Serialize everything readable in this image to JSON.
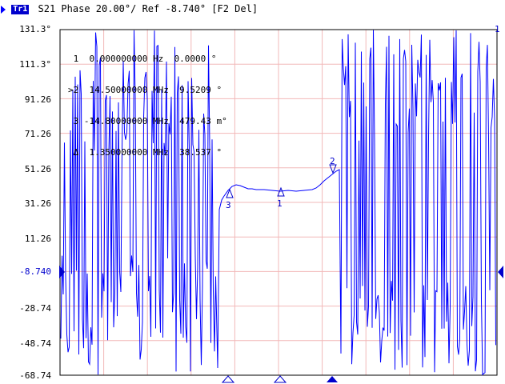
{
  "trace_header": {
    "badge": "Tr1",
    "text": "S21 Phase 20.00°/ Ref -8.740° [F2 Del]"
  },
  "y_axis": {
    "labels": [
      "131.3°",
      "111.3°",
      "91.26",
      "71.26",
      "51.26",
      "31.26",
      "11.26",
      "-8.740",
      "-28.74",
      "-48.74",
      "-68.74"
    ]
  },
  "marker_table": [
    {
      "id": "1",
      "prefix": " ",
      "freq": "0.000000000 Hz",
      "value": "0.0000 °"
    },
    {
      "id": "2",
      "prefix": ">",
      "freq": "14.50000000 MHz",
      "value": "9.5209 °"
    },
    {
      "id": "3",
      "prefix": " ",
      "freq": "-14.80000000 MHz",
      "value": "479.43 m°"
    },
    {
      "id": "Δ",
      "prefix": " ",
      "freq": "1.350000000 MHz",
      "value": "38.537 °"
    }
  ],
  "plot_markers": [
    "1",
    "2",
    "3",
    "1"
  ],
  "colors": {
    "trace": "#0000ff",
    "grid": "#f2b8b8",
    "frame": "#000000",
    "background": "#ffffff",
    "text": "#000000"
  }
}
